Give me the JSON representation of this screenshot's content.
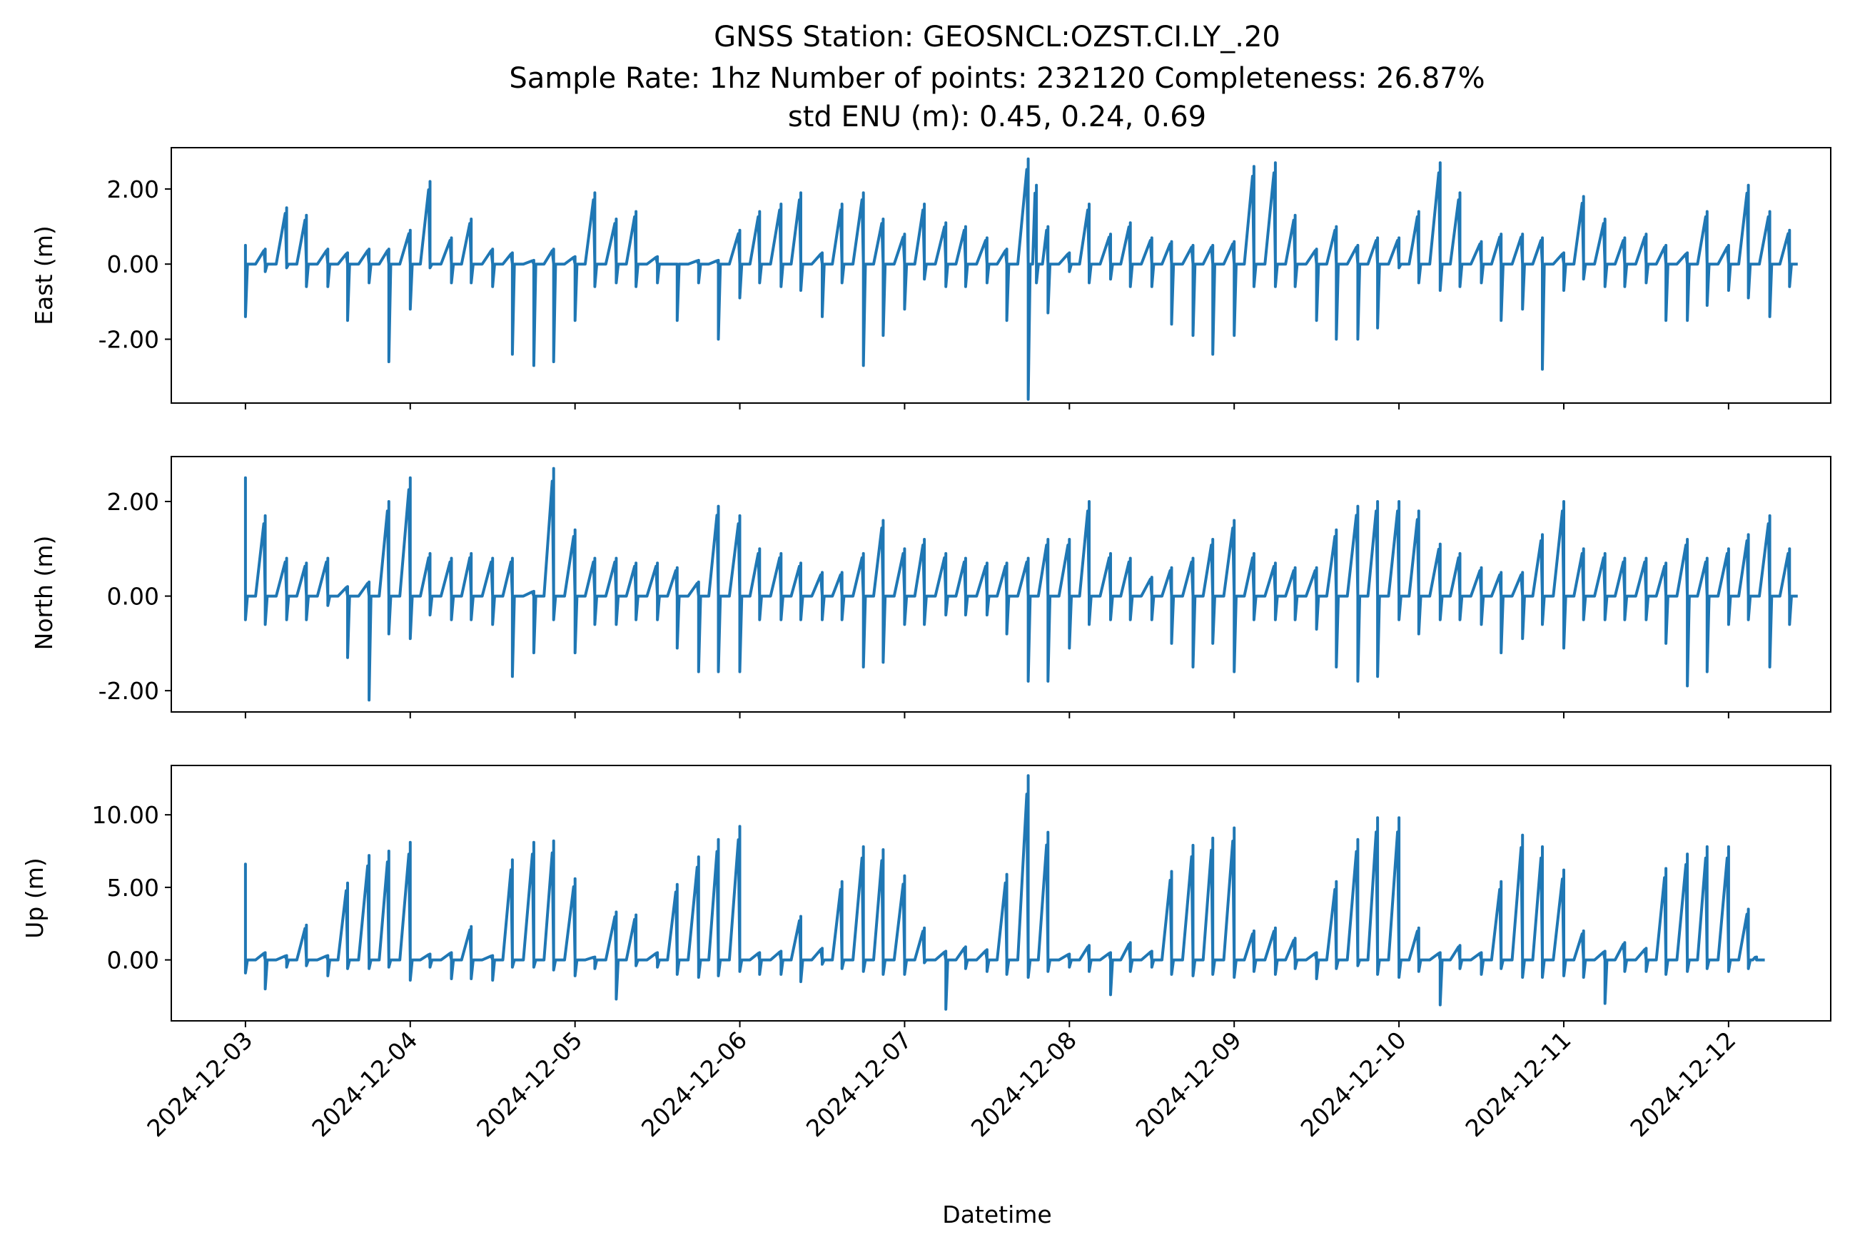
{
  "chart_data": {
    "type": "line",
    "title_lines": [
      "GNSS Station: GEOSNCL:OZST.CI.LY_.20",
      "Sample Rate: 1hz   Number of points: 232120    Completeness:  26.87%",
      "std ENU (m):  0.45, 0.24, 0.69"
    ],
    "xlabel": "Datetime",
    "x_ticks": [
      "2024-12-03",
      "2024-12-04",
      "2024-12-05",
      "2024-12-06",
      "2024-12-07",
      "2024-12-08",
      "2024-12-09",
      "2024-12-10",
      "2024-12-11",
      "2024-12-12"
    ],
    "xlim_days": [
      -0.45,
      9.62
    ],
    "line_color": "#1f77b4",
    "grid": false,
    "panels": [
      {
        "ylabel": "East (m)",
        "ylim": [
          -3.7,
          3.1
        ],
        "yticks": [
          2.0,
          0.0,
          -2.0
        ],
        "ytick_labels": [
          "2.00",
          "0.00",
          "-2.00"
        ],
        "segments": [
          [
            0.0,
            0.5,
            -1.4
          ],
          [
            0.12,
            0.4,
            -0.2
          ],
          [
            0.25,
            1.5,
            -0.1
          ],
          [
            0.37,
            1.3,
            -0.6
          ],
          [
            0.5,
            0.4,
            -0.6
          ],
          [
            0.62,
            0.3,
            -1.5
          ],
          [
            0.75,
            0.4,
            -0.5
          ],
          [
            0.87,
            0.4,
            -2.6
          ],
          [
            1.0,
            0.9,
            -1.2
          ],
          [
            1.12,
            2.2,
            -0.1
          ],
          [
            1.25,
            0.7,
            -0.5
          ],
          [
            1.37,
            1.2,
            -0.5
          ],
          [
            1.5,
            0.4,
            -0.6
          ],
          [
            1.62,
            0.3,
            -2.4
          ],
          [
            1.75,
            0.1,
            -2.7
          ],
          [
            1.87,
            0.4,
            -2.6
          ],
          [
            2.0,
            0.2,
            -1.5
          ],
          [
            2.12,
            1.9,
            -0.6
          ],
          [
            2.25,
            1.2,
            -0.5
          ],
          [
            2.37,
            1.4,
            -0.6
          ],
          [
            2.5,
            0.2,
            -0.5
          ],
          [
            2.62,
            0.0,
            -1.5
          ],
          [
            2.75,
            0.1,
            -0.5
          ],
          [
            2.87,
            0.1,
            -2.0
          ],
          [
            3.0,
            0.9,
            -0.9
          ],
          [
            3.12,
            1.4,
            -0.5
          ],
          [
            3.25,
            1.6,
            -0.6
          ],
          [
            3.37,
            1.9,
            -0.7
          ],
          [
            3.5,
            0.3,
            -1.4
          ],
          [
            3.62,
            1.6,
            -0.5
          ],
          [
            3.75,
            1.9,
            -2.7
          ],
          [
            3.87,
            1.2,
            -1.9
          ],
          [
            4.0,
            0.8,
            -1.2
          ],
          [
            4.12,
            1.6,
            -0.4
          ],
          [
            4.25,
            1.1,
            -0.6
          ],
          [
            4.37,
            1.0,
            -0.6
          ],
          [
            4.5,
            0.7,
            -0.5
          ],
          [
            4.62,
            0.4,
            -1.5
          ],
          [
            4.75,
            2.8,
            -3.6
          ],
          [
            4.8,
            2.1,
            -0.5
          ],
          [
            4.87,
            1.0,
            -1.3
          ],
          [
            5.0,
            0.3,
            -0.2
          ],
          [
            5.12,
            1.6,
            -0.5
          ],
          [
            5.25,
            0.8,
            -0.4
          ],
          [
            5.37,
            1.1,
            -0.6
          ],
          [
            5.5,
            0.7,
            -0.6
          ],
          [
            5.62,
            0.6,
            -1.6
          ],
          [
            5.75,
            0.5,
            -1.9
          ],
          [
            5.87,
            0.5,
            -2.4
          ],
          [
            6.0,
            0.6,
            -1.9
          ],
          [
            6.12,
            2.6,
            -0.6
          ],
          [
            6.25,
            2.7,
            -0.6
          ],
          [
            6.37,
            1.3,
            -0.6
          ],
          [
            6.5,
            0.4,
            -1.5
          ],
          [
            6.62,
            1.0,
            -2.0
          ],
          [
            6.75,
            0.5,
            -2.0
          ],
          [
            6.87,
            0.7,
            -1.7
          ],
          [
            7.0,
            0.7,
            -0.1
          ],
          [
            7.12,
            1.4,
            -0.5
          ],
          [
            7.25,
            2.7,
            -0.7
          ],
          [
            7.37,
            1.9,
            -0.6
          ],
          [
            7.5,
            0.6,
            -0.5
          ],
          [
            7.62,
            0.8,
            -1.5
          ],
          [
            7.75,
            0.8,
            -1.2
          ],
          [
            7.87,
            0.7,
            -2.8
          ],
          [
            8.0,
            0.3,
            -0.7
          ],
          [
            8.12,
            1.8,
            -0.4
          ],
          [
            8.25,
            1.2,
            -0.6
          ],
          [
            8.37,
            0.7,
            -0.6
          ],
          [
            8.5,
            0.8,
            -0.5
          ],
          [
            8.62,
            0.5,
            -1.5
          ],
          [
            8.75,
            0.3,
            -1.5
          ],
          [
            8.87,
            1.4,
            -1.1
          ],
          [
            9.0,
            0.5,
            -0.7
          ],
          [
            9.12,
            2.1,
            -0.9
          ],
          [
            9.25,
            1.4,
            -1.4
          ],
          [
            9.37,
            0.9,
            -0.6
          ]
        ]
      },
      {
        "ylabel": "North (m)",
        "ylim": [
          -2.45,
          2.95
        ],
        "yticks": [
          2.0,
          0.0,
          -2.0
        ],
        "ytick_labels": [
          "2.00",
          "0.00",
          "-2.00"
        ],
        "segments": [
          [
            0.0,
            2.5,
            -0.5
          ],
          [
            0.12,
            1.7,
            -0.6
          ],
          [
            0.25,
            0.8,
            -0.5
          ],
          [
            0.37,
            0.7,
            -0.5
          ],
          [
            0.5,
            0.8,
            -0.2
          ],
          [
            0.62,
            0.2,
            -1.3
          ],
          [
            0.75,
            0.3,
            -2.2
          ],
          [
            0.87,
            2.0,
            -0.8
          ],
          [
            1.0,
            2.5,
            -0.9
          ],
          [
            1.12,
            0.9,
            -0.4
          ],
          [
            1.25,
            0.8,
            -0.5
          ],
          [
            1.37,
            0.9,
            -0.5
          ],
          [
            1.5,
            0.8,
            -0.6
          ],
          [
            1.62,
            0.8,
            -1.7
          ],
          [
            1.75,
            0.1,
            -1.2
          ],
          [
            1.87,
            2.7,
            -0.5
          ],
          [
            2.0,
            1.4,
            -1.2
          ],
          [
            2.12,
            0.8,
            -0.6
          ],
          [
            2.25,
            0.8,
            -0.6
          ],
          [
            2.37,
            0.7,
            -0.5
          ],
          [
            2.5,
            0.7,
            -0.5
          ],
          [
            2.62,
            0.6,
            -1.1
          ],
          [
            2.75,
            0.3,
            -1.6
          ],
          [
            2.87,
            1.9,
            -1.6
          ],
          [
            3.0,
            1.7,
            -1.6
          ],
          [
            3.12,
            1.0,
            -0.5
          ],
          [
            3.25,
            0.9,
            -0.5
          ],
          [
            3.37,
            0.7,
            -0.5
          ],
          [
            3.5,
            0.5,
            -0.5
          ],
          [
            3.62,
            0.5,
            -0.5
          ],
          [
            3.75,
            0.9,
            -1.5
          ],
          [
            3.87,
            1.6,
            -1.4
          ],
          [
            4.0,
            1.0,
            -0.6
          ],
          [
            4.12,
            1.2,
            -0.6
          ],
          [
            4.25,
            0.9,
            -0.4
          ],
          [
            4.37,
            0.8,
            -0.4
          ],
          [
            4.5,
            0.7,
            -0.4
          ],
          [
            4.62,
            0.7,
            -0.8
          ],
          [
            4.75,
            0.8,
            -1.8
          ],
          [
            4.87,
            1.2,
            -1.8
          ],
          [
            5.0,
            1.2,
            -1.1
          ],
          [
            5.12,
            2.0,
            -0.6
          ],
          [
            5.25,
            0.9,
            -0.5
          ],
          [
            5.37,
            0.8,
            -0.5
          ],
          [
            5.5,
            0.4,
            -0.5
          ],
          [
            5.62,
            0.6,
            -1.0
          ],
          [
            5.75,
            0.8,
            -1.5
          ],
          [
            5.87,
            1.2,
            -1.0
          ],
          [
            6.0,
            1.6,
            -1.6
          ],
          [
            6.12,
            0.9,
            -0.5
          ],
          [
            6.25,
            0.7,
            -0.5
          ],
          [
            6.37,
            0.6,
            -0.5
          ],
          [
            6.5,
            0.6,
            -0.7
          ],
          [
            6.62,
            1.4,
            -1.5
          ],
          [
            6.75,
            1.9,
            -1.8
          ],
          [
            6.87,
            2.0,
            -1.7
          ],
          [
            7.0,
            2.0,
            -0.5
          ],
          [
            7.12,
            1.8,
            -0.8
          ],
          [
            7.25,
            1.1,
            -0.5
          ],
          [
            7.37,
            0.9,
            -0.5
          ],
          [
            7.5,
            0.6,
            -0.6
          ],
          [
            7.62,
            0.5,
            -1.2
          ],
          [
            7.75,
            0.5,
            -0.9
          ],
          [
            7.87,
            1.3,
            -0.6
          ],
          [
            8.0,
            2.0,
            -1.1
          ],
          [
            8.12,
            1.0,
            -0.5
          ],
          [
            8.25,
            0.9,
            -0.5
          ],
          [
            8.37,
            0.8,
            -0.5
          ],
          [
            8.5,
            0.8,
            -0.5
          ],
          [
            8.62,
            0.7,
            -1.0
          ],
          [
            8.75,
            1.2,
            -1.9
          ],
          [
            8.87,
            0.8,
            -1.6
          ],
          [
            9.0,
            1.0,
            -0.6
          ],
          [
            9.12,
            1.3,
            -0.5
          ],
          [
            9.25,
            1.7,
            -1.5
          ],
          [
            9.37,
            1.0,
            -0.6
          ]
        ]
      },
      {
        "ylabel": "Up (m)",
        "ylim": [
          -4.2,
          13.4
        ],
        "yticks": [
          10.0,
          5.0,
          0.0
        ],
        "ytick_labels": [
          "10.00",
          "5.00",
          "0.00"
        ],
        "segments": [
          [
            0.0,
            6.6,
            -0.9
          ],
          [
            0.12,
            0.5,
            -2.0
          ],
          [
            0.25,
            0.3,
            -0.5
          ],
          [
            0.37,
            2.4,
            -0.4
          ],
          [
            0.5,
            0.3,
            -1.1
          ],
          [
            0.62,
            5.3,
            -0.6
          ],
          [
            0.75,
            7.2,
            -0.6
          ],
          [
            0.87,
            7.5,
            -0.5
          ],
          [
            1.0,
            8.1,
            -1.4
          ],
          [
            1.12,
            0.4,
            -0.5
          ],
          [
            1.25,
            0.5,
            -1.3
          ],
          [
            1.37,
            2.3,
            -1.3
          ],
          [
            1.5,
            0.3,
            -1.4
          ],
          [
            1.62,
            6.9,
            -0.5
          ],
          [
            1.75,
            8.1,
            -0.5
          ],
          [
            1.87,
            8.2,
            -0.7
          ],
          [
            2.0,
            5.6,
            -1.1
          ],
          [
            2.12,
            0.2,
            -0.6
          ],
          [
            2.25,
            3.3,
            -2.7
          ],
          [
            2.37,
            3.1,
            -0.4
          ],
          [
            2.5,
            0.5,
            -0.5
          ],
          [
            2.62,
            5.2,
            -1.0
          ],
          [
            2.75,
            7.1,
            -1.2
          ],
          [
            2.87,
            8.3,
            -1.1
          ],
          [
            3.0,
            9.2,
            -0.8
          ],
          [
            3.12,
            0.5,
            -1.0
          ],
          [
            3.25,
            0.6,
            -1.0
          ],
          [
            3.37,
            3.0,
            -1.5
          ],
          [
            3.5,
            0.8,
            -0.3
          ],
          [
            3.62,
            5.4,
            -0.6
          ],
          [
            3.75,
            7.8,
            -0.8
          ],
          [
            3.87,
            7.6,
            -1.0
          ],
          [
            4.0,
            5.8,
            -1.0
          ],
          [
            4.12,
            2.2,
            -0.2
          ],
          [
            4.25,
            0.6,
            -3.4
          ],
          [
            4.37,
            0.9,
            -0.6
          ],
          [
            4.5,
            0.7,
            -0.8
          ],
          [
            4.62,
            5.9,
            -1.0
          ],
          [
            4.75,
            12.7,
            -1.2
          ],
          [
            4.87,
            8.8,
            -0.8
          ],
          [
            5.0,
            0.4,
            -0.5
          ],
          [
            5.12,
            1.0,
            -0.8
          ],
          [
            5.25,
            0.5,
            -2.4
          ],
          [
            5.37,
            1.2,
            -0.8
          ],
          [
            5.5,
            0.6,
            -0.5
          ],
          [
            5.62,
            6.1,
            -1.0
          ],
          [
            5.75,
            7.9,
            -1.1
          ],
          [
            5.87,
            8.4,
            -1.0
          ],
          [
            6.0,
            9.1,
            -1.2
          ],
          [
            6.12,
            2.0,
            -0.8
          ],
          [
            6.25,
            2.2,
            -1.0
          ],
          [
            6.37,
            1.5,
            -0.6
          ],
          [
            6.5,
            0.5,
            -1.3
          ],
          [
            6.62,
            5.4,
            -0.6
          ],
          [
            6.75,
            8.3,
            -0.4
          ],
          [
            6.87,
            9.8,
            -1.0
          ],
          [
            7.0,
            9.8,
            -1.2
          ],
          [
            7.12,
            2.2,
            -0.8
          ],
          [
            7.25,
            0.5,
            -3.1
          ],
          [
            7.37,
            1.0,
            -0.6
          ],
          [
            7.5,
            0.5,
            -1.0
          ],
          [
            7.62,
            5.4,
            -0.6
          ],
          [
            7.75,
            8.6,
            -1.2
          ],
          [
            7.87,
            7.8,
            -1.2
          ],
          [
            8.0,
            6.2,
            -1.1
          ],
          [
            8.12,
            2.0,
            -1.2
          ],
          [
            8.25,
            0.6,
            -3.0
          ],
          [
            8.37,
            1.2,
            -0.8
          ],
          [
            8.5,
            0.8,
            -0.8
          ],
          [
            8.62,
            6.3,
            -1.0
          ],
          [
            8.75,
            7.3,
            -0.8
          ],
          [
            8.87,
            7.8,
            -0.6
          ],
          [
            9.0,
            7.8,
            -0.8
          ],
          [
            9.12,
            3.5,
            -0.6
          ],
          [
            9.17,
            0.2,
            0.0
          ]
        ]
      }
    ]
  }
}
